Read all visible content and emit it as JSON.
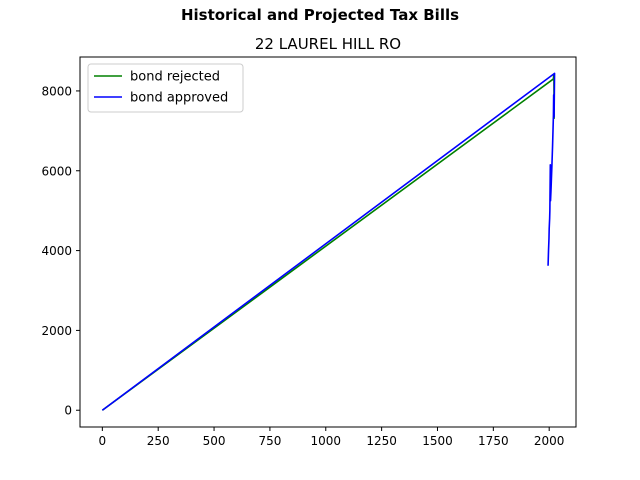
{
  "figure": {
    "suptitle": "Historical and Projected Tax Bills",
    "title": "22 LAUREL HILL RO"
  },
  "chart_data": {
    "type": "line",
    "suptitle": "Historical and Projected Tax Bills",
    "title": "22 LAUREL HILL RO",
    "xlabel": "",
    "ylabel": "",
    "xlim": [
      -100,
      2120
    ],
    "ylim": [
      -420,
      8850
    ],
    "xticks": [
      0,
      250,
      500,
      750,
      1000,
      1250,
      1500,
      1750,
      2000
    ],
    "yticks": [
      0,
      2000,
      4000,
      6000,
      8000
    ],
    "grid": false,
    "legend_position": "upper left",
    "series": [
      {
        "name": "bond rejected",
        "color": "#008000",
        "x": [
          0,
          2019,
          2020,
          2021,
          2022
        ],
        "y": [
          0,
          8300,
          8400,
          8420,
          7300
        ]
      },
      {
        "name": "bond approved",
        "color": "#0000ff",
        "x": [
          0,
          2024,
          2022,
          2020,
          2019,
          2017,
          2015,
          2012,
          2010,
          2008,
          2006,
          2005,
          2003,
          2002,
          2000,
          1999,
          1997,
          1995
        ],
        "y": [
          0,
          8440,
          7350,
          7900,
          7400,
          7000,
          6600,
          6100,
          5800,
          5500,
          5250,
          6150,
          5000,
          4800,
          4550,
          4300,
          4000,
          3620
        ]
      }
    ]
  }
}
